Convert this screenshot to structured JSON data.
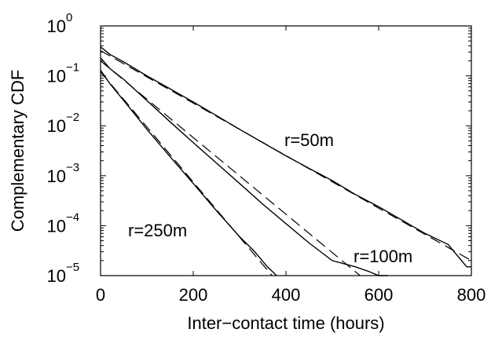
{
  "chart_data": {
    "type": "line",
    "title": "",
    "xlabel": "Inter−contact time (hours)",
    "ylabel": "Complementary CDF",
    "xlim": [
      0,
      800
    ],
    "ylim": [
      1e-05,
      1
    ],
    "yscale": "log",
    "grid": false,
    "x_ticks": [
      "0",
      "200",
      "400",
      "600",
      "800"
    ],
    "y_ticks": [
      {
        "base": "10",
        "exp": "0",
        "value": 1
      },
      {
        "base": "10",
        "exp": "−1",
        "value": 0.1
      },
      {
        "base": "10",
        "exp": "−2",
        "value": 0.01
      },
      {
        "base": "10",
        "exp": "−3",
        "value": 0.001
      },
      {
        "base": "10",
        "exp": "−4",
        "value": 0.0001
      },
      {
        "base": "10",
        "exp": "−5",
        "value": 1e-05
      }
    ],
    "series": [
      {
        "style": "solid",
        "annotation": "r=50m",
        "x": [
          0,
          20,
          50,
          100,
          150,
          200,
          250,
          300,
          350,
          400,
          450,
          500,
          550,
          600,
          650,
          700,
          750,
          770,
          790,
          800
        ],
        "y": [
          0.38,
          0.27,
          0.19,
          0.1,
          0.055,
          0.03,
          0.016,
          0.0085,
          0.0046,
          0.0025,
          0.0014,
          0.0008,
          0.00042,
          0.00024,
          0.00013,
          7e-05,
          4.2e-05,
          2.5e-05,
          1.5e-05,
          1.5e-05
        ]
      },
      {
        "style": "dashed",
        "x": [
          0,
          800
        ],
        "y": [
          0.32,
          2e-05
        ]
      },
      {
        "style": "solid",
        "annotation": "r=100m",
        "x": [
          0,
          20,
          50,
          100,
          150,
          200,
          250,
          300,
          350,
          400,
          450,
          500,
          550,
          580,
          600,
          620
        ],
        "y": [
          0.23,
          0.14,
          0.085,
          0.032,
          0.012,
          0.0046,
          0.0018,
          0.0007,
          0.00027,
          0.00011,
          4.5e-05,
          2e-05,
          1.5e-05,
          1.2e-05,
          1e-05,
          1e-05
        ]
      },
      {
        "style": "dashed",
        "x": [
          0,
          560
        ],
        "y": [
          0.2,
          1e-05
        ]
      },
      {
        "style": "solid",
        "annotation": "r=250m",
        "x": [
          0,
          20,
          50,
          100,
          150,
          200,
          250,
          300,
          330,
          360,
          380
        ],
        "y": [
          0.13,
          0.07,
          0.032,
          0.0085,
          0.0024,
          0.0007,
          0.0002,
          6e-05,
          3.2e-05,
          1.5e-05,
          1e-05
        ]
      },
      {
        "style": "dashed",
        "x": [
          0,
          370
        ],
        "y": [
          0.12,
          1e-05
        ]
      }
    ]
  }
}
